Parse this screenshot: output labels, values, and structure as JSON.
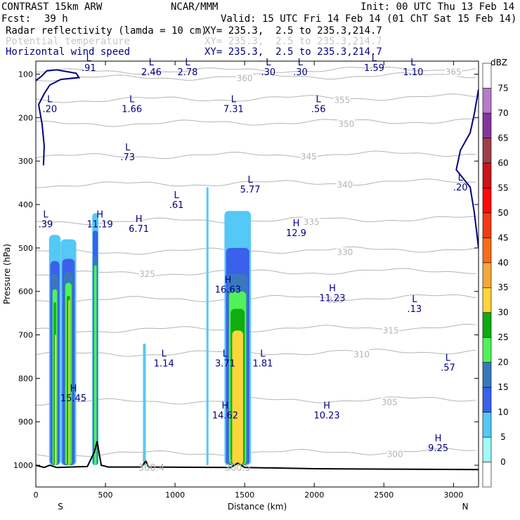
{
  "header": {
    "model": "CONTRAST 15km ARW",
    "center": "NCAR/MMM",
    "init": "Init: 00 UTC Thu 13 Feb 14",
    "fcst_label": "Fcst:",
    "fcst_value": "39 h",
    "valid": "Valid: 15 UTC Fri 14 Feb 14 (01 ChT Sat 15 Feb 14)",
    "fields": [
      {
        "name": "Radar reflectivity (lamda = 10 cm)",
        "xy": "XY= 235.3,  2.5 to 235.3,214.7"
      },
      {
        "name": "Potential temperature",
        "xy": "XY= 235.3,  2.5 to 235.3,214.7"
      },
      {
        "name": "Horizontal wind speed",
        "xy": "XY= 235.3,  2.5 to 235.3,214.7"
      }
    ]
  },
  "colors": {
    "theta": "#b4b4b4",
    "wind": "#000080",
    "terrain": "#000000"
  },
  "chart_data": {
    "type": "cross-section",
    "xlabel": "Distance (km)",
    "ylabel": "Pressure (hPa)",
    "xlim": [
      0,
      3180
    ],
    "ylim": [
      1050,
      70
    ],
    "xticks": [
      0,
      500,
      1000,
      1500,
      2000,
      2500,
      3000
    ],
    "yticks": [
      100,
      200,
      300,
      400,
      500,
      600,
      700,
      800,
      900,
      1000
    ],
    "end_labels": {
      "left": "S",
      "right": "N"
    },
    "colorbar": {
      "unit": "dBZ",
      "levels": [
        0,
        5,
        10,
        15,
        20,
        25,
        30,
        35,
        40,
        45,
        50,
        55,
        60,
        65,
        70,
        75
      ],
      "colors": [
        "#ffffff",
        "#9ffcf8",
        "#54c8f6",
        "#3a60ec",
        "#3879bd",
        "#50f25a",
        "#10ac10",
        "#fed53a",
        "#f5a73a",
        "#f76d1a",
        "#f13b16",
        "#fe0a0a",
        "#c91518",
        "#a13e48",
        "#83359e",
        "#b67cc9",
        "#ffffff"
      ]
    },
    "reflectivity_cells": [
      {
        "x": [
          95,
          178
        ],
        "p_top": 460,
        "bins": [
          [
            5,
            470
          ],
          [
            10,
            530
          ],
          [
            15,
            560
          ],
          [
            20,
            595
          ],
          [
            25,
            625
          ],
          [
            30,
            700
          ]
        ]
      },
      {
        "x": [
          178,
          290
        ],
        "p_top": 470,
        "bins": [
          [
            5,
            480
          ],
          [
            10,
            525
          ],
          [
            15,
            555
          ],
          [
            20,
            580
          ],
          [
            25,
            610
          ],
          [
            30,
            620
          ]
        ]
      },
      {
        "x": [
          405,
          450
        ],
        "p_top": 410,
        "bins": [
          [
            5,
            420
          ],
          [
            10,
            460
          ],
          [
            15,
            520
          ],
          [
            20,
            540
          ]
        ]
      },
      {
        "x": [
          770,
          790
        ],
        "p_top": 715,
        "bins": [
          [
            5,
            720
          ]
        ]
      },
      {
        "x": [
          1225,
          1240
        ],
        "p_top": 355,
        "bins": [
          [
            5,
            360
          ]
        ]
      },
      {
        "x": [
          1355,
          1545
        ],
        "p_top": 405,
        "bins": [
          [
            5,
            415
          ],
          [
            10,
            500
          ],
          [
            15,
            560
          ],
          [
            20,
            600
          ],
          [
            25,
            640
          ],
          [
            30,
            690
          ]
        ]
      }
    ],
    "theta_contours": [
      {
        "level": 300,
        "p": 975,
        "label_x": 2580
      },
      {
        "level": 305,
        "p": 855,
        "label_x": 2540
      },
      {
        "level": 310,
        "p": 745,
        "label_x": 2340
      },
      {
        "level": 315,
        "p": 690,
        "label_x": 2550
      },
      {
        "level": 320,
        "p": 620,
        "label_x": 2150
      },
      {
        "level": 325,
        "p": 560,
        "label_x": 800
      },
      {
        "level": 330,
        "p": 510,
        "label_x": 2220
      },
      {
        "level": 335,
        "p": 440,
        "label_x": 1980
      },
      {
        "level": 340,
        "p": 355,
        "label_x": 2220
      },
      {
        "level": 345,
        "p": 290,
        "label_x": 1960
      },
      {
        "level": 350,
        "p": 215,
        "label_x": 2230
      },
      {
        "level": 355,
        "p": 160,
        "label_x": 2200
      },
      {
        "level": 360,
        "p": 110,
        "label_x": 1500
      },
      {
        "level": 365,
        "p": 95,
        "label_x": 3000
      }
    ],
    "extrema": [
      {
        "kind": "L",
        "value": ".91",
        "x": 380,
        "p": 70
      },
      {
        "kind": "L",
        "value": "2.46",
        "x": 830,
        "p": 80
      },
      {
        "kind": "L",
        "value": "2.78",
        "x": 1090,
        "p": 80
      },
      {
        "kind": "L",
        "value": ".30",
        "x": 1670,
        "p": 80
      },
      {
        "kind": "L",
        "value": ".30",
        "x": 1900,
        "p": 80
      },
      {
        "kind": "L",
        "value": "1.59",
        "x": 2430,
        "p": 70
      },
      {
        "kind": "L",
        "value": "1.10",
        "x": 2710,
        "p": 80
      },
      {
        "kind": "L",
        "value": "1.66",
        "x": 690,
        "p": 165
      },
      {
        "kind": "L",
        "value": "7.31",
        "x": 1420,
        "p": 165
      },
      {
        "kind": "L",
        "value": ".56",
        "x": 2030,
        "p": 165
      },
      {
        "kind": "L",
        "value": ".20",
        "x": 100,
        "p": 165
      },
      {
        "kind": "L",
        "value": ".73",
        "x": 660,
        "p": 275
      },
      {
        "kind": "L",
        "value": "5.77",
        "x": 1540,
        "p": 350
      },
      {
        "kind": "L",
        "value": ".61",
        "x": 1010,
        "p": 385
      },
      {
        "kind": "L",
        "value": ".20",
        "x": 3050,
        "p": 345
      },
      {
        "kind": "L",
        "value": ".39",
        "x": 50,
        "p": 430
      },
      {
        "kind": "H",
        "value": "11.19",
        "x": 460,
        "p": 430
      },
      {
        "kind": "H",
        "value": "6.71",
        "x": 740,
        "p": 440
      },
      {
        "kind": "H",
        "value": "12.9",
        "x": 1870,
        "p": 450
      },
      {
        "kind": "H",
        "value": "16.63",
        "x": 1380,
        "p": 580
      },
      {
        "kind": "H",
        "value": "11.23",
        "x": 2130,
        "p": 600
      },
      {
        "kind": "L",
        "value": ".13",
        "x": 2720,
        "p": 625
      },
      {
        "kind": "L",
        "value": "1.14",
        "x": 920,
        "p": 750
      },
      {
        "kind": "L",
        "value": "3.71",
        "x": 1360,
        "p": 750
      },
      {
        "kind": "L",
        "value": "1.81",
        "x": 1630,
        "p": 750
      },
      {
        "kind": "L",
        "value": ".57",
        "x": 2960,
        "p": 760
      },
      {
        "kind": "H",
        "value": "15.45",
        "x": 270,
        "p": 830
      },
      {
        "kind": "H",
        "value": "14.62",
        "x": 1360,
        "p": 870
      },
      {
        "kind": "H",
        "value": "10.23",
        "x": 2090,
        "p": 870
      },
      {
        "kind": "H",
        "value": "9.25",
        "x": 2890,
        "p": 945
      }
    ],
    "theta_minima": [
      {
        "kind": "L",
        "value": "300.4",
        "x": 780,
        "p": 1000
      },
      {
        "kind": "L",
        "value": "300.5",
        "x": 1400,
        "p": 1000
      }
    ],
    "terrain": [
      [
        0,
        1000
      ],
      [
        60,
        1005
      ],
      [
        100,
        1000
      ],
      [
        150,
        1005
      ],
      [
        370,
        1003
      ],
      [
        420,
        970
      ],
      [
        440,
        945
      ],
      [
        470,
        1000
      ],
      [
        520,
        1004
      ],
      [
        760,
        1004
      ],
      [
        790,
        990
      ],
      [
        810,
        1004
      ],
      [
        1400,
        1005
      ],
      [
        1450,
        995
      ],
      [
        1500,
        1005
      ],
      [
        2000,
        1008
      ],
      [
        3180,
        1010
      ]
    ],
    "wind_contours": [
      {
        "label": "20",
        "points": [
          [
            0,
            115
          ],
          [
            40,
            105
          ],
          [
            80,
            92
          ],
          [
            150,
            90
          ],
          [
            290,
            98
          ],
          [
            310,
            108
          ],
          [
            180,
            112
          ],
          [
            100,
            125
          ],
          [
            60,
            145
          ],
          [
            20,
            170
          ],
          [
            45,
            215
          ],
          [
            60,
            265
          ],
          [
            55,
            310
          ]
        ]
      },
      {
        "label": "20",
        "points": [
          [
            3180,
            135
          ],
          [
            3150,
            190
          ],
          [
            3120,
            235
          ],
          [
            3050,
            275
          ],
          [
            3020,
            320
          ],
          [
            3120,
            360
          ],
          [
            3150,
            420
          ],
          [
            3180,
            500
          ]
        ]
      }
    ]
  }
}
